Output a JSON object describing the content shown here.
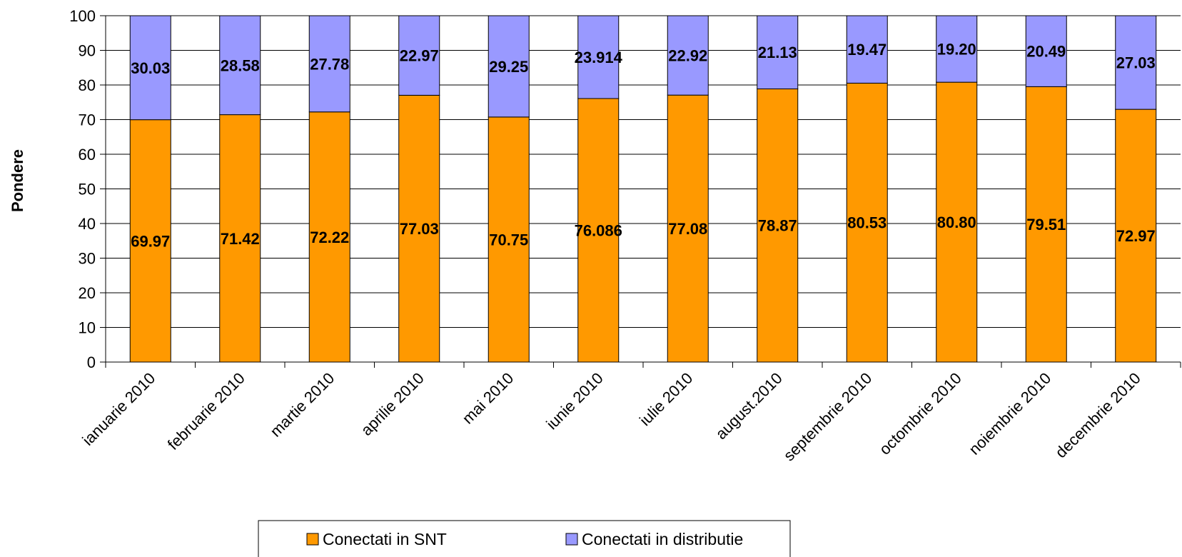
{
  "chart_data": {
    "type": "bar",
    "stacked": true,
    "title": "",
    "xlabel": "",
    "ylabel": "Pondere",
    "ylim": [
      0,
      100
    ],
    "yticks": [
      0,
      10,
      20,
      30,
      40,
      50,
      60,
      70,
      80,
      90,
      100
    ],
    "grid": true,
    "legend_position": "bottom",
    "categories": [
      "ianuarie 2010",
      "februarie 2010",
      "martie 2010",
      "aprilie 2010",
      "mai 2010",
      "iunie 2010",
      "iulie 2010",
      "august.2010",
      "septembrie 2010",
      "octombrie 2010",
      "noiembrie 2010",
      "decembrie 2010"
    ],
    "series": [
      {
        "name": "Conectati in SNT",
        "color": "#FF9900",
        "values": [
          69.97,
          71.42,
          72.22,
          77.03,
          70.75,
          76.086,
          77.08,
          78.87,
          80.53,
          80.8,
          79.51,
          72.97
        ],
        "labels": [
          "69.97",
          "71.42",
          "72.22",
          "77.03",
          "70.75",
          "76.086",
          "77.08",
          "78.87",
          "80.53",
          "80.80",
          "79.51",
          "72.97"
        ]
      },
      {
        "name": "Conectati in distributie",
        "color": "#9999FF",
        "values": [
          30.03,
          28.58,
          27.78,
          22.97,
          29.25,
          23.914,
          22.92,
          21.13,
          19.47,
          19.2,
          20.49,
          27.03
        ],
        "labels": [
          "30.03",
          "28.58",
          "27.78",
          "22.97",
          "29.25",
          "23.914",
          "22.92",
          "21.13",
          "19.47",
          "19.20",
          "20.49",
          "27.03"
        ]
      }
    ]
  }
}
